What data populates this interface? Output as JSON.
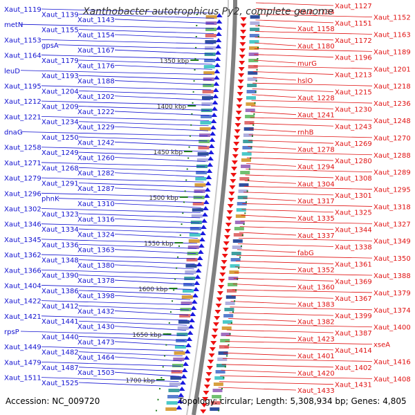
{
  "title": "Xanthobacter autotrophicus Py2, complete genome",
  "accession": "Accession: NC_009720",
  "topology": "Topology: circular; Length: 5,308,934 bp; Genes: 4,805",
  "colors": {
    "left": "#1010d0",
    "right": "#e01010",
    "axis": "#808080",
    "tick": "#1a7a1a"
  },
  "ticks": [
    "1350 kbp",
    "1400 kbp",
    "1450 kbp",
    "1500 kbp",
    "1550 kbp",
    "1600 kbp",
    "1650 kbp",
    "1700 kbp"
  ],
  "left_labels": [
    "Xaut_1119",
    "Xaut_1139",
    "Xaut_1143",
    "metN",
    "Xaut_1155",
    "Xaut_1154",
    "Xaut_1153",
    "gpsA",
    "Xaut_1167",
    "Xaut_1164",
    "Xaut_1179",
    "Xaut_1176",
    "leuD",
    "Xaut_1193",
    "Xaut_1188",
    "Xaut_1195",
    "Xaut_1204",
    "Xaut_1202",
    "Xaut_1212",
    "Xaut_1209",
    "Xaut_1222",
    "Xaut_1221",
    "Xaut_1234",
    "Xaut_1229",
    "dnaG",
    "Xaut_1250",
    "Xaut_1242",
    "Xaut_1258",
    "Xaut_1249",
    "Xaut_1260",
    "Xaut_1271",
    "Xaut_1268",
    "Xaut_1282",
    "Xaut_1279",
    "Xaut_1291",
    "Xaut_1287",
    "Xaut_1296",
    "phnK",
    "Xaut_1310",
    "Xaut_1302",
    "Xaut_1323",
    "Xaut_1316",
    "Xaut_1346",
    "Xaut_1334",
    "Xaut_1324",
    "Xaut_1345",
    "Xaut_1336",
    "Xaut_1363",
    "Xaut_1362",
    "Xaut_1348",
    "Xaut_1380",
    "Xaut_1366",
    "Xaut_1390",
    "Xaut_1378",
    "Xaut_1404",
    "Xaut_1386",
    "Xaut_1398",
    "Xaut_1422",
    "Xaut_1412",
    "Xaut_1432",
    "Xaut_1421",
    "Xaut_1441",
    "Xaut_1430",
    "rpsP",
    "Xaut_1440",
    "Xaut_1473",
    "Xaut_1449",
    "Xaut_1482",
    "Xaut_1464",
    "Xaut_1479",
    "Xaut_1487",
    "Xaut_1503",
    "Xaut_1511",
    "Xaut_1525"
  ],
  "right_labels": [
    "Xaut_1127",
    "Xaut_1134",
    "Xaut_1152",
    "Xaut_1151",
    "Xaut_1158",
    "Xaut_1163",
    "Xaut_1172",
    "Xaut_1180",
    "Xaut_1189",
    "Xaut_1196",
    "murG",
    "Xaut_1201",
    "Xaut_1213",
    "hslO",
    "Xaut_1218",
    "Xaut_1215",
    "Xaut_1228",
    "Xaut_1236",
    "Xaut_1230",
    "Xaut_1241",
    "Xaut_1248",
    "Xaut_1243",
    "rnhB",
    "Xaut_1270",
    "Xaut_1269",
    "Xaut_1278",
    "Xaut_1288",
    "Xaut_1280",
    "Xaut_1294",
    "Xaut_1289",
    "Xaut_1308",
    "Xaut_1304",
    "Xaut_1295",
    "Xaut_1301",
    "Xaut_1317",
    "Xaut_1318",
    "Xaut_1325",
    "Xaut_1335",
    "Xaut_1327",
    "Xaut_1344",
    "Xaut_1337",
    "Xaut_1349",
    "Xaut_1338",
    "fabG",
    "Xaut_1350",
    "Xaut_1361",
    "Xaut_1352",
    "Xaut_1388",
    "Xaut_1369",
    "Xaut_1360",
    "Xaut_1379",
    "Xaut_1367",
    "Xaut_1383",
    "Xaut_1374",
    "Xaut_1399",
    "Xaut_1382",
    "Xaut_1400",
    "Xaut_1387",
    "Xaut_1423",
    "xseA",
    "Xaut_1414",
    "Xaut_1401",
    "Xaut_1416",
    "Xaut_1402",
    "Xaut_1420",
    "Xaut_1408",
    "Xaut_1431",
    "Xaut_1433"
  ]
}
